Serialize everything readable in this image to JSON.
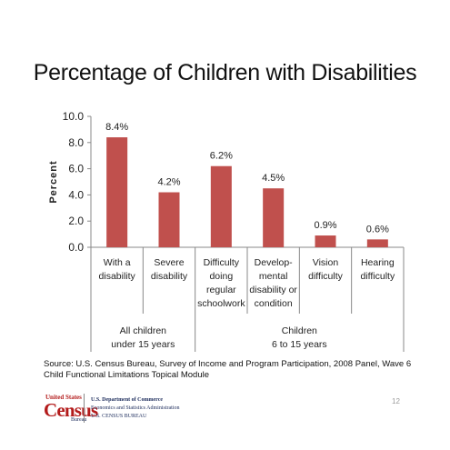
{
  "slide": {
    "title": "Percentage of Children with Disabilities",
    "source": "Source:  U.S. Census Bureau, Survey of Income and Program Participation, 2008 Panel, Wave 6 Child Functional Limitations Topical Module",
    "page_number": "12"
  },
  "footer": {
    "logo_top": "United States",
    "logo_main": "Census",
    "logo_sub": "Bureau",
    "dept_lines": [
      "U.S. Department of Commerce",
      "Economics and Statistics Administration",
      "U.S. CENSUS BUREAU"
    ]
  },
  "chart_data": {
    "type": "bar",
    "categories": [
      [
        "With a",
        "disability"
      ],
      [
        "Severe",
        "disability"
      ],
      [
        "Difficulty",
        "doing",
        "regular",
        "schoolwork"
      ],
      [
        "Develop-",
        "mental",
        "disability or",
        "condition"
      ],
      [
        "Vision",
        "difficulty"
      ],
      [
        "Hearing",
        "difficulty"
      ]
    ],
    "values": [
      8.4,
      4.2,
      6.2,
      4.5,
      0.9,
      0.6
    ],
    "data_labels": [
      "8.4%",
      "4.2%",
      "6.2%",
      "4.5%",
      "0.9%",
      "0.6%"
    ],
    "ylabel": "Percent",
    "ylim": [
      0,
      10
    ],
    "yticks": [
      "0.0",
      "2.0",
      "4.0",
      "6.0",
      "8.0",
      "10.0"
    ],
    "groups": [
      {
        "label": [
          "All children",
          "under 15 years"
        ],
        "span": [
          0,
          1
        ]
      },
      {
        "label": [
          "Children",
          "6 to 15 years"
        ],
        "span": [
          2,
          5
        ]
      }
    ],
    "bar_color": "#c0504d",
    "grid": false
  }
}
